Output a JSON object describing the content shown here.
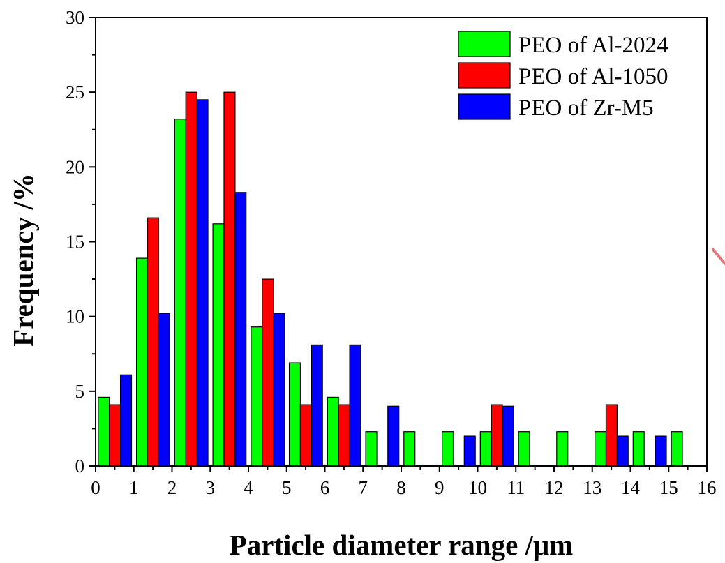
{
  "chart_data": {
    "type": "bar",
    "title": "",
    "xlabel": "Particle diameter range /μm",
    "ylabel": "Frequency /%",
    "xlim": [
      0,
      16
    ],
    "ylim": [
      0,
      30
    ],
    "x_ticks": [
      "0",
      "1",
      "2",
      "3",
      "4",
      "5",
      "6",
      "7",
      "8",
      "9",
      "10",
      "11",
      "12",
      "13",
      "14",
      "15",
      "16"
    ],
    "y_ticks": [
      "0",
      "5",
      "10",
      "15",
      "20",
      "25",
      "30"
    ],
    "categories": [
      "0-1",
      "1-2",
      "2-3",
      "3-4",
      "4-5",
      "5-6",
      "6-7",
      "7-8",
      "8-9",
      "9-10",
      "10-11",
      "11-12",
      "12-13",
      "13-14",
      "14-15",
      "15-16"
    ],
    "series": [
      {
        "name": "PEO of Al-2024",
        "color": "#00ff00",
        "values": [
          4.6,
          13.9,
          23.2,
          16.2,
          9.3,
          6.9,
          4.6,
          2.3,
          2.3,
          2.3,
          2.3,
          2.3,
          2.3,
          2.3,
          2.3,
          2.3
        ]
      },
      {
        "name": "PEO of Al-1050",
        "color": "#ff0000",
        "values": [
          4.1,
          16.6,
          25.0,
          25.0,
          12.5,
          4.1,
          4.1,
          0,
          0,
          0,
          4.1,
          0,
          0,
          4.1,
          0,
          0
        ]
      },
      {
        "name": "PEO of Zr-M5",
        "color": "#0000ff",
        "values": [
          6.1,
          10.2,
          24.5,
          18.3,
          10.2,
          8.1,
          8.1,
          4.0,
          0,
          2.0,
          4.0,
          0,
          0,
          2.0,
          2.0,
          0
        ]
      }
    ],
    "grid": false,
    "legend_position": "top-right"
  }
}
